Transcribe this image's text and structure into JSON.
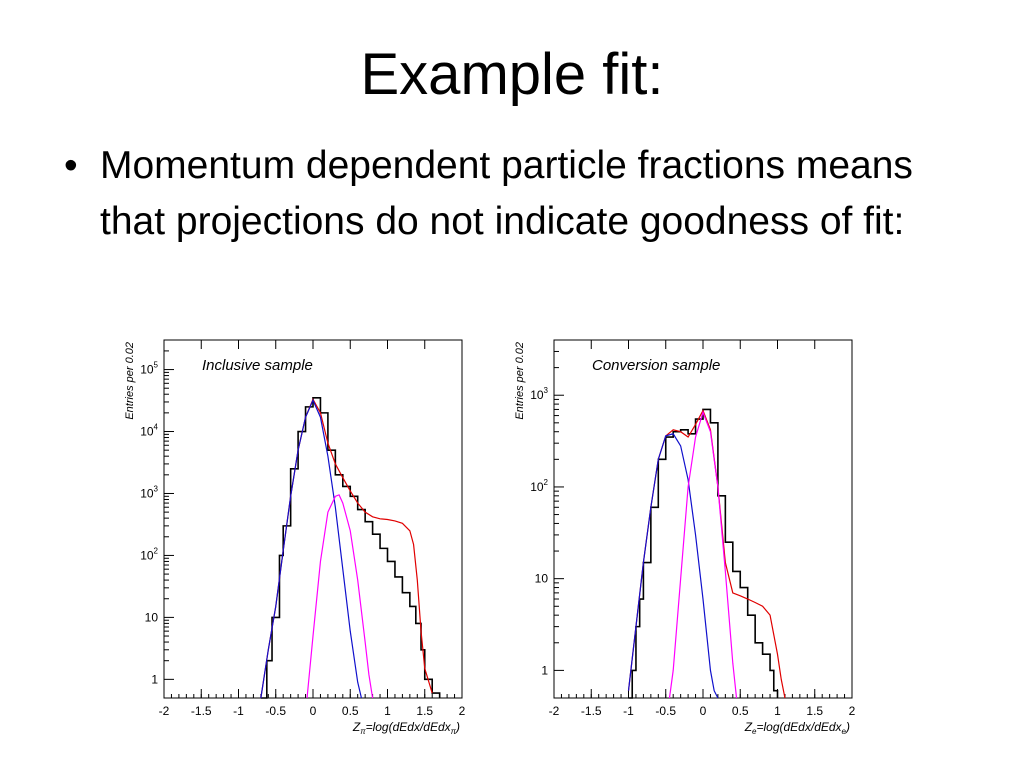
{
  "slide": {
    "title": "Example fit:",
    "bullets": [
      {
        "marker": "•",
        "text": "Momentum dependent particle fractions means that projections do not indicate goodness of fit:"
      }
    ]
  },
  "chart_data": [
    {
      "type": "line",
      "title": "Inclusive sample",
      "ylabel": "Entries per 0.02",
      "xlabel_main": "Z",
      "xlabel_sub": "π",
      "xlabel_rest": "=log(dEdx/dEdx",
      "xlabel_end": ")",
      "xlim": [
        -2,
        2
      ],
      "ylim": [
        0.5,
        300000
      ],
      "yscale": "log",
      "xticks": [
        "-2",
        "-1.5",
        "-1",
        "-0.5",
        "0",
        "0.5",
        "1",
        "1.5",
        "2"
      ],
      "xtick_values": [
        -2,
        -1.5,
        -1,
        -0.5,
        0,
        0.5,
        1,
        1.5,
        2
      ],
      "ytick_labels": [
        {
          "v": 1,
          "base": "1",
          "exp": ""
        },
        {
          "v": 10,
          "base": "10",
          "exp": ""
        },
        {
          "v": 100,
          "base": "10",
          "exp": "2"
        },
        {
          "v": 1000,
          "base": "10",
          "exp": "3"
        },
        {
          "v": 10000,
          "base": "10",
          "exp": "4"
        },
        {
          "v": 100000,
          "base": "10",
          "exp": "5"
        }
      ],
      "series": [
        {
          "kind": "data",
          "color": "#000000",
          "x": [
            -0.7,
            -0.62,
            -0.55,
            -0.45,
            -0.4,
            -0.3,
            -0.2,
            -0.1,
            0.0,
            0.1,
            0.2,
            0.3,
            0.4,
            0.5,
            0.6,
            0.7,
            0.8,
            0.9,
            1.0,
            1.1,
            1.2,
            1.3,
            1.38,
            1.45,
            1.5,
            1.6,
            1.7
          ],
          "y": [
            0.5,
            2,
            10,
            100,
            300,
            2500,
            10000,
            25000,
            35000,
            20000,
            5000,
            2000,
            1300,
            900,
            550,
            350,
            220,
            130,
            80,
            45,
            25,
            15,
            8,
            3,
            1,
            0.6,
            0.5
          ]
        },
        {
          "kind": "fit-total",
          "color": "#e00000",
          "x": [
            -0.7,
            -0.6,
            -0.5,
            -0.4,
            -0.3,
            -0.2,
            -0.1,
            0.0,
            0.1,
            0.2,
            0.3,
            0.4,
            0.5,
            0.6,
            0.7,
            0.8,
            0.9,
            1.0,
            1.1,
            1.2,
            1.3,
            1.35,
            1.4,
            1.45,
            1.5,
            1.6
          ],
          "y": [
            0.5,
            3,
            15,
            120,
            900,
            5000,
            17000,
            33000,
            20000,
            6500,
            3000,
            1800,
            1100,
            700,
            500,
            420,
            390,
            380,
            360,
            330,
            250,
            150,
            40,
            6,
            1.5,
            0.6
          ]
        },
        {
          "kind": "component-1",
          "color": "#1010cc",
          "x": [
            -0.7,
            -0.6,
            -0.5,
            -0.4,
            -0.3,
            -0.2,
            -0.1,
            0.0,
            0.1,
            0.2,
            0.3,
            0.4,
            0.5,
            0.6,
            0.65
          ],
          "y": [
            0.5,
            3,
            15,
            120,
            900,
            5000,
            17000,
            32000,
            17000,
            4000,
            600,
            60,
            6,
            0.9,
            0.5
          ]
        },
        {
          "kind": "component-2",
          "color": "#ff00ff",
          "x": [
            -0.08,
            0.0,
            0.1,
            0.2,
            0.3,
            0.35,
            0.4,
            0.5,
            0.6,
            0.7,
            0.75,
            0.8
          ],
          "y": [
            0.5,
            5,
            80,
            500,
            900,
            950,
            700,
            250,
            40,
            4,
            1.2,
            0.5
          ]
        }
      ]
    },
    {
      "type": "line",
      "title": "Conversion sample",
      "ylabel": "Entries per 0.02",
      "xlabel_main": "Z",
      "xlabel_sub": "e",
      "xlabel_rest": "=log(dEdx/dEdx",
      "xlabel_end": ")",
      "xlim": [
        -2,
        2
      ],
      "ylim": [
        0.5,
        4000
      ],
      "yscale": "log",
      "xticks": [
        "-2",
        "-1.5",
        "-1",
        "-0.5",
        "0",
        "0.5",
        "1",
        "1.5",
        "2"
      ],
      "xtick_values": [
        -2,
        -1.5,
        -1,
        -0.5,
        0,
        0.5,
        1,
        1.5,
        2
      ],
      "ytick_labels": [
        {
          "v": 1,
          "base": "1",
          "exp": ""
        },
        {
          "v": 10,
          "base": "10",
          "exp": ""
        },
        {
          "v": 100,
          "base": "10",
          "exp": "2"
        },
        {
          "v": 1000,
          "base": "10",
          "exp": "3"
        }
      ],
      "series": [
        {
          "kind": "data",
          "color": "#000000",
          "x": [
            -1.0,
            -0.95,
            -0.9,
            -0.85,
            -0.8,
            -0.7,
            -0.6,
            -0.5,
            -0.4,
            -0.3,
            -0.2,
            -0.1,
            0.0,
            0.1,
            0.2,
            0.3,
            0.4,
            0.5,
            0.6,
            0.7,
            0.8,
            0.9,
            0.95,
            1.0
          ],
          "y": [
            0.5,
            1,
            3,
            6,
            15,
            60,
            200,
            350,
            400,
            420,
            380,
            550,
            700,
            500,
            80,
            25,
            12,
            8,
            4,
            2,
            1.5,
            1,
            0.6,
            0.5
          ]
        },
        {
          "kind": "fit-total",
          "color": "#e00000",
          "x": [
            -1.0,
            -0.9,
            -0.8,
            -0.7,
            -0.6,
            -0.5,
            -0.4,
            -0.3,
            -0.2,
            -0.1,
            0.0,
            0.1,
            0.2,
            0.3,
            0.4,
            0.5,
            0.6,
            0.7,
            0.8,
            0.9,
            1.0,
            1.05,
            1.1
          ],
          "y": [
            0.6,
            3,
            15,
            60,
            200,
            360,
            420,
            400,
            350,
            480,
            680,
            420,
            100,
            15,
            7,
            6.5,
            6,
            5.5,
            5,
            4,
            1.5,
            0.8,
            0.5
          ]
        },
        {
          "kind": "component-1",
          "color": "#1010cc",
          "x": [
            -1.0,
            -0.9,
            -0.8,
            -0.7,
            -0.6,
            -0.5,
            -0.4,
            -0.3,
            -0.2,
            -0.1,
            0.0,
            0.1,
            0.15,
            0.2
          ],
          "y": [
            0.6,
            3,
            15,
            60,
            200,
            360,
            380,
            280,
            120,
            30,
            6,
            1,
            0.6,
            0.5
          ]
        },
        {
          "kind": "component-2",
          "color": "#ff00ff",
          "x": [
            -0.45,
            -0.4,
            -0.3,
            -0.2,
            -0.1,
            0.0,
            0.1,
            0.2,
            0.3,
            0.4,
            0.45
          ],
          "y": [
            0.5,
            1,
            10,
            100,
            350,
            650,
            400,
            100,
            12,
            1.2,
            0.5
          ]
        }
      ]
    }
  ]
}
